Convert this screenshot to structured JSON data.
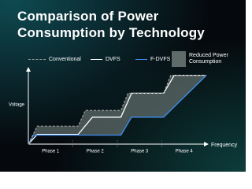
{
  "chart_data": {
    "type": "line",
    "title": "Comparison of  Power Consumption by Technology",
    "x_label": "Frequency",
    "y_label": "Voltage",
    "phases": [
      "Phase 1",
      "Phase 2",
      "Phase 3",
      "Phase 4"
    ],
    "xlim": [
      0,
      100
    ],
    "ylim": [
      0,
      100
    ],
    "series": [
      {
        "name": "Conventional",
        "color": "#9a9a9a",
        "dashed": true,
        "x": [
          0,
          5,
          28,
          32,
          52,
          56,
          76,
          80,
          100
        ],
        "values": [
          0,
          24,
          24,
          45,
          45,
          68,
          68,
          92,
          92
        ]
      },
      {
        "name": "DVFS",
        "color": "#ffffff",
        "x": [
          0,
          5,
          28,
          36,
          52,
          58,
          76,
          82,
          100
        ],
        "values": [
          0,
          13,
          13,
          36,
          36,
          68,
          68,
          92,
          92
        ]
      },
      {
        "name": "F-DVFS",
        "color": "#3d8ff0",
        "x": [
          0,
          3,
          52,
          58,
          76,
          100
        ],
        "values": [
          0,
          12,
          12,
          36,
          36,
          92
        ]
      }
    ],
    "area": {
      "name": "Reduced Power Consumption",
      "color": "#7d8a86"
    }
  }
}
